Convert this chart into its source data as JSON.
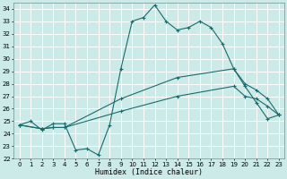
{
  "xlabel": "Humidex (Indice chaleur)",
  "xlim": [
    -0.5,
    23.5
  ],
  "ylim": [
    22,
    34.5
  ],
  "xticks": [
    0,
    1,
    2,
    3,
    4,
    5,
    6,
    7,
    8,
    9,
    10,
    11,
    12,
    13,
    14,
    15,
    16,
    17,
    18,
    19,
    20,
    21,
    22,
    23
  ],
  "yticks": [
    22,
    23,
    24,
    25,
    26,
    27,
    28,
    29,
    30,
    31,
    32,
    33,
    34
  ],
  "bg_color": "#cceae8",
  "line_color": "#1a6b6b",
  "grid_color": "#ffffff",
  "line1_x": [
    0,
    1,
    2,
    3,
    4,
    5,
    6,
    7,
    8,
    9,
    10,
    11,
    12,
    13,
    14,
    15,
    16,
    17,
    18,
    19,
    20,
    21,
    22,
    23
  ],
  "line1_y": [
    24.7,
    25.0,
    24.3,
    24.8,
    24.8,
    22.7,
    22.8,
    22.3,
    24.7,
    29.2,
    33.0,
    33.3,
    34.3,
    33.0,
    32.3,
    32.5,
    33.0,
    32.5,
    31.2,
    29.2,
    27.8,
    26.5,
    25.2,
    25.5
  ],
  "line2_x": [
    0,
    2,
    3,
    4,
    9,
    14,
    19,
    20,
    21,
    22,
    23
  ],
  "line2_y": [
    24.7,
    24.4,
    24.5,
    24.5,
    26.8,
    28.5,
    29.2,
    28.0,
    27.5,
    26.8,
    25.5
  ],
  "line3_x": [
    0,
    2,
    3,
    4,
    9,
    14,
    19,
    20,
    21,
    22,
    23
  ],
  "line3_y": [
    24.7,
    24.4,
    24.5,
    24.5,
    25.8,
    27.0,
    27.8,
    27.0,
    26.8,
    26.2,
    25.5
  ]
}
